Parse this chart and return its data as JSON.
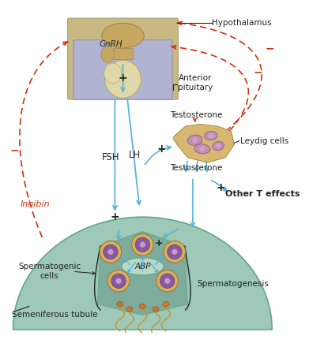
{
  "bg_color": "#ffffff",
  "hypothalamus_label": "Hypothalamus",
  "gnrh_label": "GnRH",
  "anterior_pituitary_label": "Anterior\npituitary",
  "testosterone_label1": "Testosterone",
  "testosterone_label2": "Testosterone",
  "leydig_label": "Leydig cells",
  "fsh_label": "FSH",
  "lh_label": "LH",
  "inhibin_label": "Inhibin",
  "abp_label": "ABP",
  "spermatogenic_label": "Spermatogenic\ncells",
  "spermatogenesis_label": "Spermatogenesis",
  "seminiferous_label": "Semeniferous tubule",
  "other_t_label": "Other T effects",
  "blue": "#5ab4d6",
  "red": "#d43010",
  "blk": "#222222",
  "hyp_fill": "#c8b882",
  "hyp_edge": "#b0a070",
  "pit_fill": "#b0b4d0",
  "pit_edge": "#9090b0",
  "gnrh_blob_fill": "#c8a860",
  "gnrh_blob_edge": "#a08840",
  "pit_bulb_fill": "#e0d8a8",
  "pit_bulb_edge": "#b0a870",
  "leydig_fill": "#c090b8",
  "leydig_edge": "#905878",
  "leydig_outer_fill": "#d8b870",
  "leydig_outer_edge": "#a08840",
  "cell_outer_fill": "#d8b060",
  "cell_outer_edge": "#a07830",
  "cell_inner_fill": "#8858a0",
  "cell_inner_edge": "#604070",
  "tubule_fill": "#9ec8b8",
  "tubule_edge": "#60a888",
  "inner_fill": "#78a898",
  "abp_fill": "#b8d8c8",
  "abp_edge": "#60a080",
  "sperm_head": "#c87828",
  "sperm_tail": "#c89030"
}
